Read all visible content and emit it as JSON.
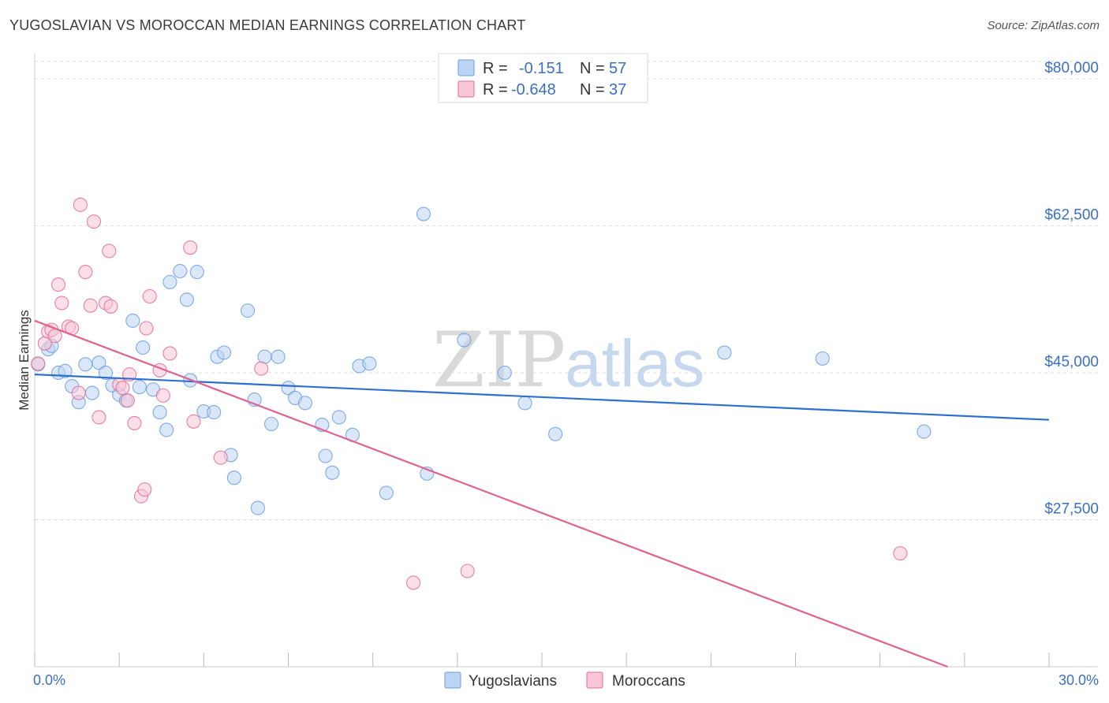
{
  "title": "YUGOSLAVIAN VS MOROCCAN MEDIAN EARNINGS CORRELATION CHART",
  "source": "Source: ZipAtlas.com",
  "watermark": {
    "zip": "ZIP",
    "atlas": "atlas"
  },
  "colors": {
    "yugoslavians": "#6a9ee0",
    "yugoslavians_fill": "#bcd4f4",
    "moroccans": "#e46b96",
    "moroccans_fill": "#f8c6d6",
    "accent_text": "#3b6fc4"
  },
  "legend": {
    "rows": [
      {
        "series": "Yugoslavians",
        "r_label": "R =",
        "r_value": "-0.151",
        "n_label": "N =",
        "n_value": "57"
      },
      {
        "series": "Moroccans",
        "r_label": "R =",
        "r_value": "-0.648",
        "n_label": "N =",
        "n_value": "37"
      }
    ]
  },
  "chart_data": {
    "type": "scatter",
    "title": "YUGOSLAVIAN VS MOROCCAN MEDIAN EARNINGS CORRELATION CHART",
    "xlabel": "",
    "ylabel": "Median Earnings",
    "xlim": [
      0,
      30
    ],
    "ylim": [
      10000,
      83000
    ],
    "x_tick_labels": [
      "0.0%",
      "30.0%"
    ],
    "y_ticks": [
      27500,
      45000,
      62500,
      80000
    ],
    "y_tick_labels": [
      "$27,500",
      "$45,000",
      "$62,500",
      "$80,000"
    ],
    "series": [
      {
        "name": "Yugoslavians",
        "trend": {
          "x": [
            0,
            30
          ],
          "y": [
            44800,
            39400
          ]
        },
        "points": [
          [
            0.1,
            46000
          ],
          [
            0.4,
            47800
          ],
          [
            0.5,
            48200
          ],
          [
            0.7,
            45000
          ],
          [
            0.9,
            45200
          ],
          [
            1.1,
            43400
          ],
          [
            1.3,
            41500
          ],
          [
            1.5,
            46000
          ],
          [
            1.7,
            42600
          ],
          [
            1.9,
            46200
          ],
          [
            2.1,
            45000
          ],
          [
            2.3,
            43500
          ],
          [
            2.5,
            42400
          ],
          [
            2.7,
            41700
          ],
          [
            2.9,
            51200
          ],
          [
            3.1,
            43300
          ],
          [
            3.2,
            48000
          ],
          [
            3.5,
            43000
          ],
          [
            3.7,
            40300
          ],
          [
            3.9,
            38200
          ],
          [
            4.0,
            55800
          ],
          [
            4.3,
            57100
          ],
          [
            4.5,
            53700
          ],
          [
            4.6,
            44100
          ],
          [
            4.8,
            57000
          ],
          [
            5.0,
            40400
          ],
          [
            5.3,
            40300
          ],
          [
            5.4,
            46900
          ],
          [
            5.6,
            47400
          ],
          [
            5.8,
            35200
          ],
          [
            5.9,
            32500
          ],
          [
            6.3,
            52400
          ],
          [
            6.5,
            41800
          ],
          [
            6.6,
            28900
          ],
          [
            6.8,
            46900
          ],
          [
            7.0,
            38900
          ],
          [
            7.2,
            46900
          ],
          [
            7.5,
            43200
          ],
          [
            7.7,
            42000
          ],
          [
            8.0,
            41400
          ],
          [
            8.5,
            38800
          ],
          [
            8.6,
            35100
          ],
          [
            8.8,
            33100
          ],
          [
            9.0,
            39700
          ],
          [
            9.4,
            37600
          ],
          [
            9.6,
            45800
          ],
          [
            9.9,
            46100
          ],
          [
            10.4,
            30700
          ],
          [
            11.5,
            63900
          ],
          [
            11.6,
            33000
          ],
          [
            12.7,
            48900
          ],
          [
            13.9,
            45000
          ],
          [
            14.5,
            41400
          ],
          [
            15.4,
            37700
          ],
          [
            20.4,
            47400
          ],
          [
            23.3,
            46700
          ],
          [
            26.3,
            38000
          ]
        ]
      },
      {
        "name": "Moroccans",
        "trend": {
          "x": [
            0,
            27.0
          ],
          "y": [
            51200,
            10000
          ]
        },
        "points": [
          [
            0.1,
            46100
          ],
          [
            0.3,
            48500
          ],
          [
            0.4,
            49900
          ],
          [
            0.5,
            50100
          ],
          [
            0.6,
            49400
          ],
          [
            0.7,
            55500
          ],
          [
            0.8,
            53300
          ],
          [
            1.0,
            50500
          ],
          [
            1.1,
            50300
          ],
          [
            1.3,
            42600
          ],
          [
            1.35,
            65000
          ],
          [
            1.5,
            57000
          ],
          [
            1.65,
            53000
          ],
          [
            1.75,
            63000
          ],
          [
            1.9,
            39700
          ],
          [
            2.1,
            53300
          ],
          [
            2.2,
            59500
          ],
          [
            2.25,
            52900
          ],
          [
            2.5,
            43600
          ],
          [
            2.6,
            43200
          ],
          [
            2.75,
            41700
          ],
          [
            2.8,
            44800
          ],
          [
            2.95,
            39000
          ],
          [
            3.15,
            30300
          ],
          [
            3.25,
            31100
          ],
          [
            3.3,
            50300
          ],
          [
            3.4,
            54100
          ],
          [
            3.7,
            45300
          ],
          [
            3.8,
            42300
          ],
          [
            4.0,
            47300
          ],
          [
            4.6,
            59900
          ],
          [
            4.7,
            39200
          ],
          [
            5.5,
            34900
          ],
          [
            6.7,
            45500
          ],
          [
            11.2,
            20000
          ],
          [
            12.8,
            21400
          ],
          [
            25.6,
            23500
          ]
        ]
      }
    ]
  },
  "bottom_legend": [
    {
      "label": "Yugoslavians"
    },
    {
      "label": "Moroccans"
    }
  ]
}
